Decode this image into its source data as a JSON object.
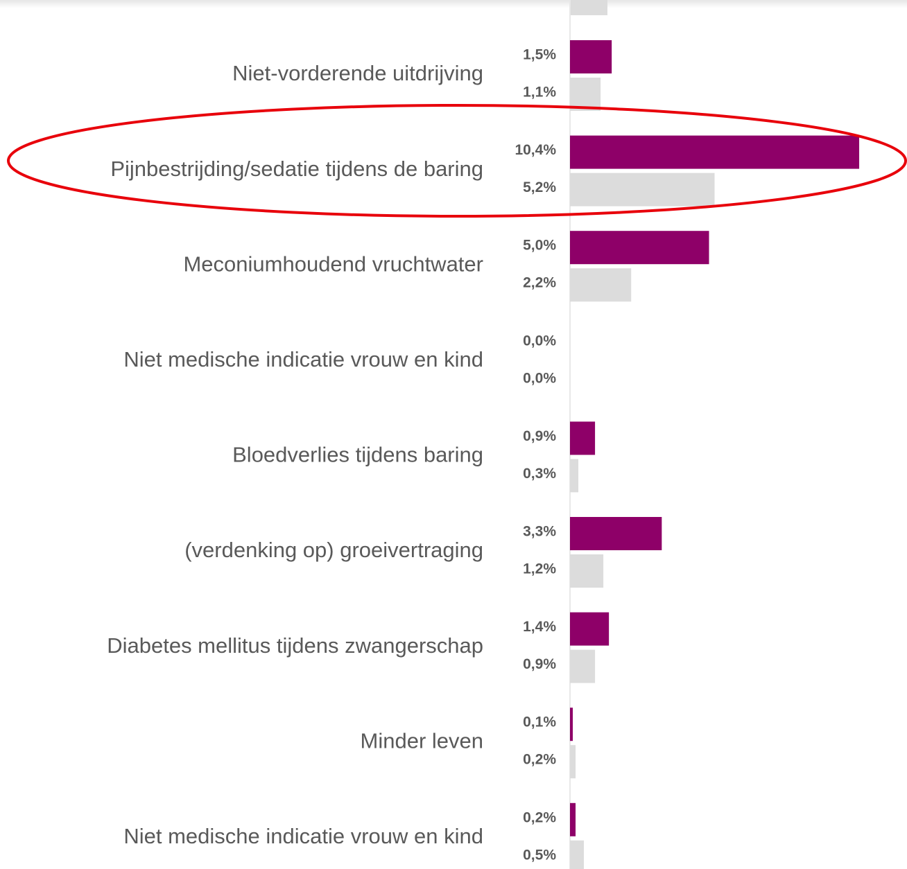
{
  "chart_data": {
    "type": "hbar",
    "categories": [
      "Niet-vorderende uitdrijving",
      "Pijnbestrijding/sedatie tijdens de baring",
      "Meconiumhoudend vruchtwater",
      "Niet medische indicatie vrouw en kind",
      "Bloedverlies tijdens baring",
      "(verdenking op) groeivertraging",
      "Diabetes mellitus tijdens zwangerschap",
      "Minder leven",
      "Niet medische indicatie vrouw en kind"
    ],
    "series": [
      {
        "color": "#8e0068",
        "values": [
          1.5,
          10.4,
          5.0,
          0.0,
          0.9,
          3.3,
          1.4,
          0.1,
          0.2
        ],
        "value_labels": [
          "1,5%",
          "10,4%",
          "5,0%",
          "0,0%",
          "0,9%",
          "3,3%",
          "1,4%",
          "0,1%",
          "0,2%"
        ]
      },
      {
        "color": "#dcdcdc",
        "values": [
          1.1,
          5.2,
          2.2,
          0.0,
          0.3,
          1.2,
          0.9,
          0.2,
          0.5
        ],
        "value_labels": [
          "1,1%",
          "5,2%",
          "2,2%",
          "0,0%",
          "0,3%",
          "1,2%",
          "0,9%",
          "0,2%",
          "0,5%"
        ]
      }
    ]
  }
}
